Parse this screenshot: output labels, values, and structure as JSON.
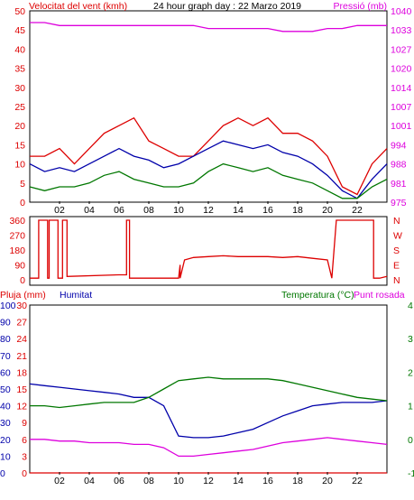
{
  "title": "24 hour graph day : 22 Marzo 2019",
  "colors": {
    "red": "#dd0000",
    "blue": "#0000aa",
    "green": "#007700",
    "magenta": "#dd00dd",
    "frame": "#000000"
  },
  "hour_labels": [
    "02",
    "04",
    "06",
    "08",
    "10",
    "12",
    "14",
    "16",
    "18",
    "20",
    "22"
  ],
  "chart_data": [
    {
      "type": "line",
      "x": [
        0,
        1,
        2,
        3,
        4,
        5,
        6,
        7,
        8,
        9,
        10,
        11,
        12,
        13,
        14,
        15,
        16,
        17,
        18,
        19,
        20,
        21,
        22,
        23,
        24
      ],
      "left_axis": {
        "label": "Velocitat del vent (kmh)",
        "ticks": [
          "50",
          "45",
          "40",
          "35",
          "30",
          "25",
          "20",
          "15",
          "10",
          "5",
          "0"
        ],
        "ylim": [
          0,
          50
        ]
      },
      "right_axis": {
        "label": "Pressió (mb)",
        "ticks": [
          "1040",
          "1033",
          "1027",
          "1020",
          "1014",
          "1007",
          "1001",
          "994",
          "988",
          "981",
          "975"
        ],
        "ylim": [
          975,
          1040
        ]
      },
      "series": [
        {
          "color": "#dd0000",
          "axis": "left",
          "values": [
            12,
            12,
            14,
            10,
            14,
            18,
            20,
            22,
            16,
            14,
            12,
            12,
            16,
            20,
            22,
            20,
            22,
            18,
            18,
            16,
            12,
            4,
            2,
            10,
            14
          ]
        },
        {
          "color": "#0000aa",
          "axis": "left",
          "values": [
            10,
            8,
            9,
            8,
            10,
            12,
            14,
            12,
            11,
            9,
            10,
            12,
            14,
            16,
            15,
            14,
            15,
            13,
            12,
            10,
            7,
            3,
            1,
            6,
            10
          ]
        },
        {
          "color": "#007700",
          "axis": "left",
          "values": [
            4,
            3,
            4,
            4,
            5,
            7,
            8,
            6,
            5,
            4,
            4,
            5,
            8,
            10,
            9,
            8,
            9,
            7,
            6,
            5,
            3,
            1,
            1,
            4,
            6
          ]
        },
        {
          "color": "#dd00dd",
          "axis": "right",
          "values": [
            1036,
            1036,
            1035,
            1035,
            1035,
            1035,
            1035,
            1035,
            1035,
            1035,
            1035,
            1035,
            1034,
            1034,
            1034,
            1034,
            1034,
            1033,
            1033,
            1033,
            1034,
            1034,
            1035,
            1035,
            1035
          ]
        }
      ]
    },
    {
      "type": "line",
      "x": [
        0,
        0.6,
        0.6,
        1.2,
        1.2,
        1.3,
        1.3,
        1.9,
        1.9,
        2.2,
        2.2,
        2.5,
        2.5,
        6,
        6.5,
        6.5,
        6.7,
        6.7,
        10,
        10.1,
        10.1,
        10.4,
        11,
        12,
        13,
        14,
        15,
        16,
        17,
        18,
        19,
        20,
        20.3,
        20.3,
        20.6,
        20.6,
        23,
        23.1,
        23.1,
        23.5,
        24
      ],
      "left_axis": {
        "ticks": [
          "360",
          "270",
          "180",
          "90",
          "0"
        ],
        "ylim": [
          0,
          360
        ]
      },
      "right_axis": {
        "ticks": [
          "N",
          "W",
          "S",
          "E",
          "N"
        ]
      },
      "series": [
        {
          "color": "#dd0000",
          "values": [
            10,
            10,
            360,
            360,
            10,
            10,
            360,
            360,
            10,
            10,
            360,
            360,
            20,
            30,
            30,
            360,
            360,
            10,
            10,
            90,
            10,
            120,
            135,
            140,
            145,
            140,
            140,
            140,
            135,
            140,
            130,
            120,
            10,
            10,
            360,
            360,
            360,
            360,
            10,
            10,
            20
          ]
        }
      ]
    },
    {
      "type": "line",
      "x": [
        0,
        1,
        2,
        3,
        4,
        5,
        6,
        7,
        8,
        9,
        10,
        11,
        12,
        13,
        14,
        15,
        16,
        17,
        18,
        19,
        20,
        21,
        22,
        23,
        24
      ],
      "left_axis": {
        "labels": [
          "Pluja (mm)",
          "Humitat"
        ],
        "ticks_rain": [
          "30",
          "27",
          "24",
          "21",
          "18",
          "15",
          "12",
          "9",
          "6",
          "3",
          "0"
        ],
        "ticks_humidity": [
          "100",
          "90",
          "80",
          "70",
          "60",
          "50",
          "40",
          "30",
          "20",
          "10",
          "0"
        ]
      },
      "right_axis": {
        "labels": [
          "Temperatura (°C)",
          "Punt rosada"
        ],
        "ticks": [
          "4",
          "3",
          "2",
          "1",
          "0",
          "-1"
        ]
      },
      "series": [
        {
          "color": "#dd0000",
          "axis": "rain",
          "values": [
            0,
            0,
            0,
            0,
            0,
            0,
            0,
            0,
            0,
            0,
            0,
            0,
            0,
            0,
            0,
            0,
            0,
            0,
            0,
            0,
            0,
            0,
            0,
            0,
            0
          ]
        },
        {
          "color": "#0000aa",
          "axis": "humidity",
          "values": [
            53,
            52,
            51,
            50,
            49,
            48,
            47,
            45,
            45,
            40,
            22,
            21,
            21,
            22,
            24,
            26,
            30,
            34,
            37,
            40,
            41,
            42,
            42,
            42,
            43
          ]
        },
        {
          "color": "#007700",
          "axis": "humidity",
          "values": [
            40,
            40,
            39,
            40,
            41,
            42,
            42,
            42,
            45,
            50,
            55,
            56,
            57,
            56,
            56,
            56,
            56,
            55,
            53,
            51,
            49,
            47,
            45,
            44,
            43
          ]
        },
        {
          "color": "#dd00dd",
          "axis": "humidity",
          "values": [
            20,
            20,
            19,
            19,
            18,
            18,
            18,
            17,
            17,
            15,
            10,
            10,
            11,
            12,
            13,
            14,
            16,
            18,
            19,
            20,
            21,
            20,
            19,
            18,
            17
          ]
        }
      ]
    }
  ]
}
